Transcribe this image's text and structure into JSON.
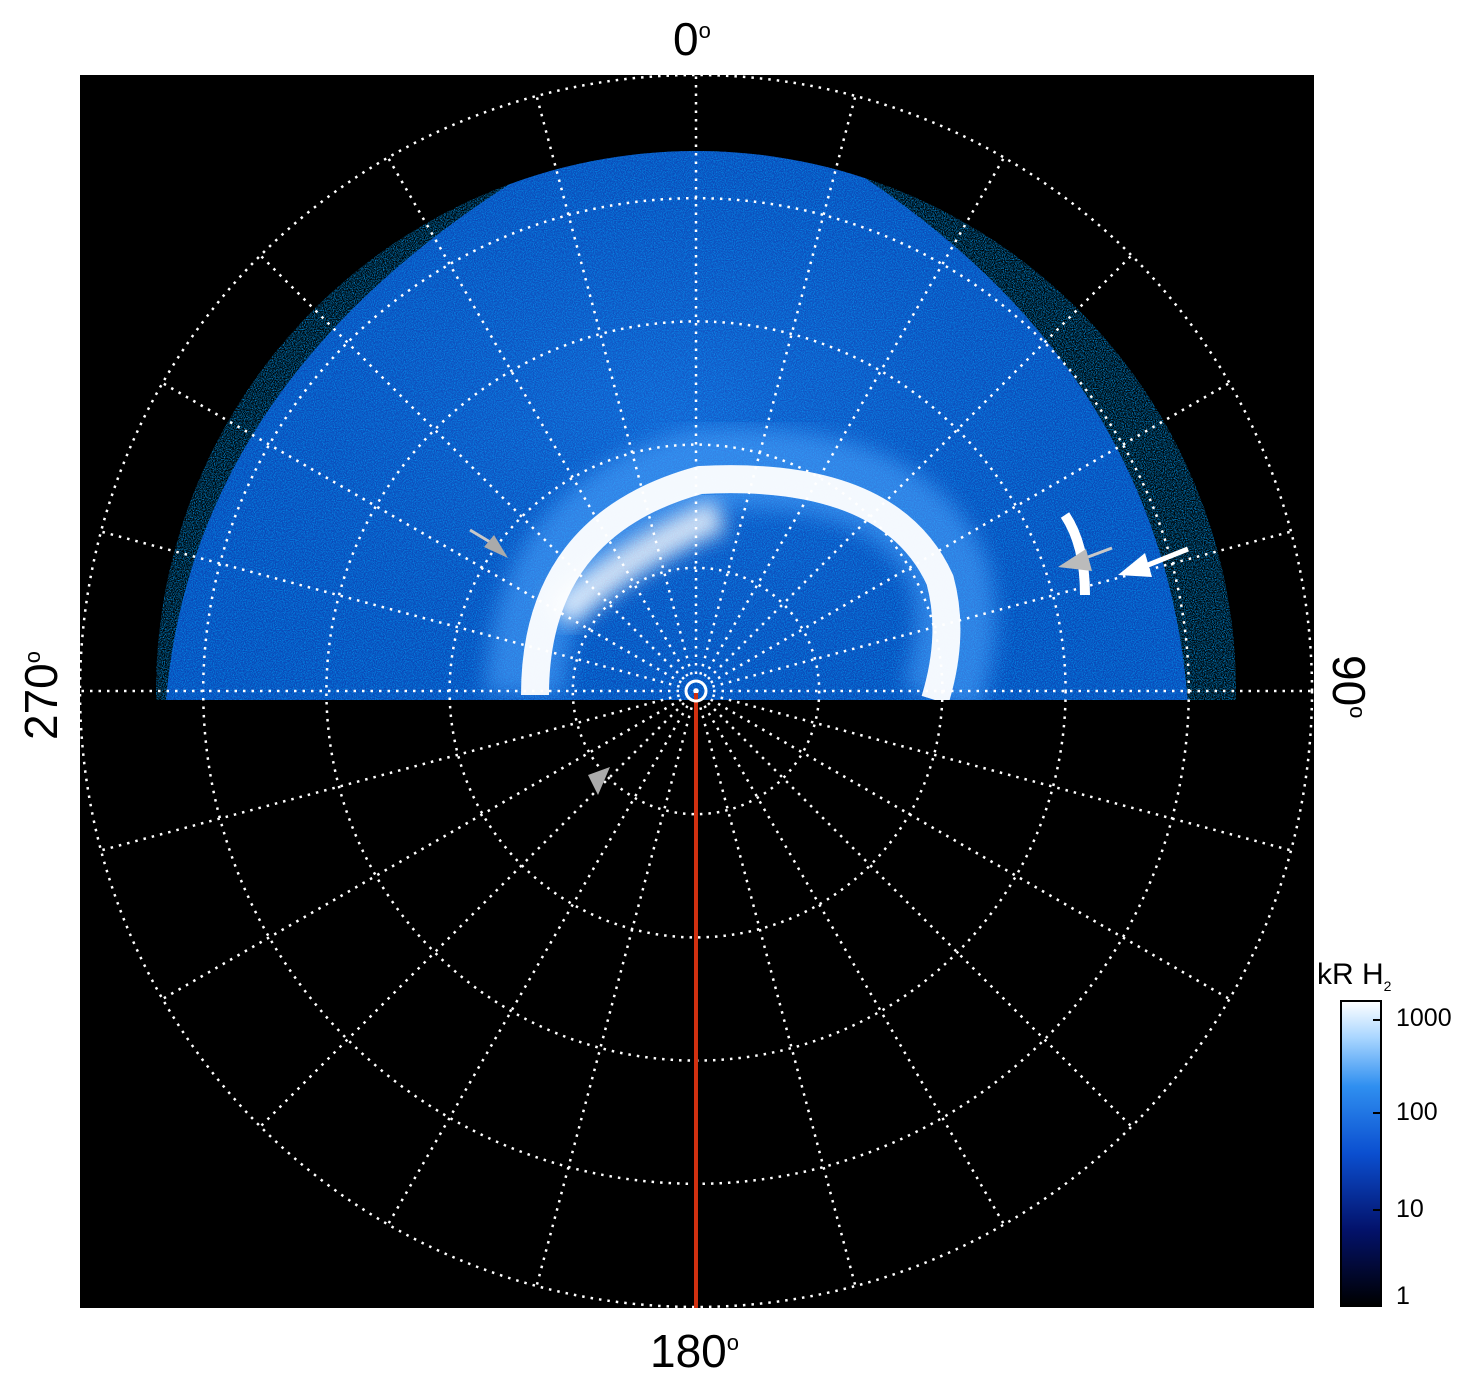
{
  "labels": {
    "top": "0",
    "right": "90",
    "bottom": "180",
    "left": "270",
    "degree": "o"
  },
  "colorbar": {
    "title": "kR H",
    "title_sub": "2",
    "ticks": [
      "1000",
      "100",
      "10",
      "1"
    ]
  },
  "colors": {
    "background": "#000000",
    "grid": "#ffffff",
    "meridian": "#d03010",
    "aurora": "#1e6fe0"
  }
}
